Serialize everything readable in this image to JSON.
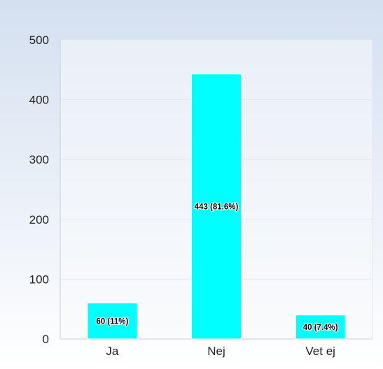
{
  "chart_data": {
    "type": "bar",
    "title": "",
    "xlabel": "",
    "ylabel": "",
    "categories": [
      "Ja",
      "Nej",
      "Vet ej"
    ],
    "values": [
      60,
      443,
      40
    ],
    "data_labels": [
      "60 (11%)",
      "443 (81.6%)",
      "40 (7.4%)"
    ],
    "ylim": [
      0,
      500
    ],
    "yticks": [
      0,
      100,
      200,
      300,
      400,
      500
    ],
    "grid": true,
    "legend": "none",
    "colors": {
      "bar": "#00ffff",
      "bar_border": "#ffffff",
      "plot_background": "#f7f9fc",
      "background_top": "#d4e0f0",
      "background_bottom": "#ffffff",
      "gridline": "#e2e7ee",
      "axis": "#c8ced6"
    }
  }
}
